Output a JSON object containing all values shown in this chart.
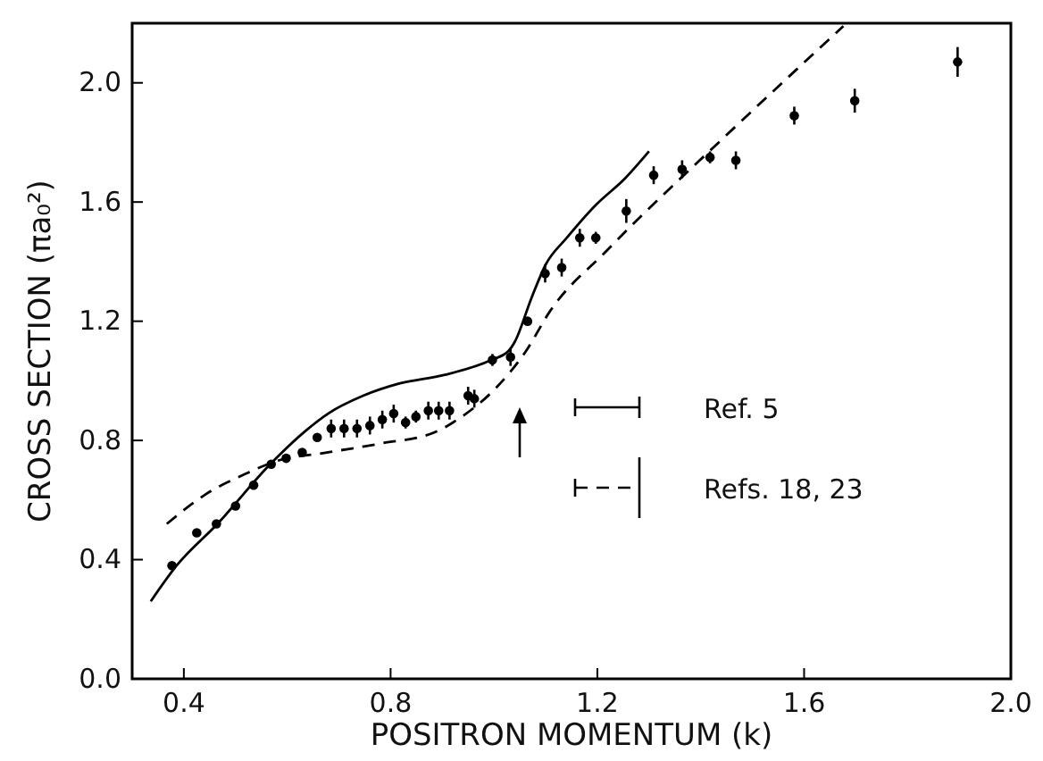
{
  "chart_data": {
    "type": "scatter",
    "xlabel": "POSITRON  MOMENTUM  (k)",
    "ylabel": "CROSS  SECTION  (πa₀²)",
    "xlim": [
      0.3,
      2.0
    ],
    "ylim": [
      0,
      2.2
    ],
    "xticks": [
      0.4,
      0.8,
      1.2,
      1.6,
      {
        "value": 2.0,
        "label": "2.0"
      }
    ],
    "yticks": [
      {
        "value": 0,
        "label": "0.0"
      },
      0.4,
      0.8,
      1.2,
      1.6,
      {
        "value": 2.0,
        "label": "2.0"
      }
    ],
    "grid": false,
    "legend": "right",
    "series": [
      {
        "color": "#000000",
        "marker": "circle",
        "x": [
          0.377,
          0.425,
          0.463,
          0.5,
          0.535,
          0.569,
          0.598,
          0.629,
          0.658,
          0.685,
          0.71,
          0.735,
          0.76,
          0.784,
          0.806,
          0.829,
          0.849,
          0.873,
          0.893,
          0.914,
          0.95,
          0.962,
          0.997,
          1.032,
          1.065,
          1.099,
          1.131,
          1.166,
          1.197,
          1.256,
          1.309,
          1.364,
          1.418,
          1.468,
          1.581,
          1.698,
          1.897
        ],
        "values": [
          0.38,
          0.49,
          0.52,
          0.58,
          0.65,
          0.72,
          0.74,
          0.76,
          0.81,
          0.84,
          0.84,
          0.84,
          0.85,
          0.87,
          0.89,
          0.86,
          0.88,
          0.9,
          0.9,
          0.9,
          0.95,
          0.94,
          1.07,
          1.08,
          1.2,
          1.36,
          1.38,
          1.48,
          1.48,
          1.57,
          1.69,
          1.71,
          1.75,
          1.74,
          1.89,
          1.94,
          2.07
        ],
        "errors": [
          null,
          null,
          null,
          null,
          null,
          null,
          null,
          null,
          null,
          0.03,
          0.03,
          0.03,
          0.03,
          0.03,
          0.03,
          0.02,
          0.02,
          0.03,
          0.03,
          0.03,
          0.03,
          0.03,
          0.02,
          0.03,
          null,
          0.03,
          0.03,
          0.03,
          0.02,
          0.04,
          0.03,
          0.03,
          0.02,
          0.03,
          0.03,
          0.04,
          0.05
        ]
      },
      {
        "type": "line",
        "name": "Ref.  5",
        "color": "#000000",
        "line_style": "solid",
        "x": [
          0.336,
          0.386,
          0.465,
          0.567,
          0.634,
          0.679,
          0.747,
          0.815,
          0.905,
          0.995,
          1.028,
          1.04,
          1.073,
          1.1,
          1.141,
          1.197,
          1.254,
          1.3
        ],
        "values": [
          0.26,
          0.38,
          0.52,
          0.72,
          0.83,
          0.89,
          0.95,
          0.99,
          1.02,
          1.07,
          1.1,
          1.13,
          1.28,
          1.39,
          1.48,
          1.59,
          1.68,
          1.77
        ]
      },
      {
        "type": "line",
        "name": "Refs.  18, 23",
        "color": "#000000",
        "line_style": "dashed",
        "x": [
          0.367,
          0.443,
          0.522,
          0.578,
          0.679,
          0.782,
          0.882,
          0.938,
          1.006,
          1.062,
          1.107,
          1.22,
          1.447,
          1.676
        ],
        "values": [
          0.52,
          0.62,
          0.69,
          0.73,
          0.76,
          0.79,
          0.825,
          0.88,
          0.98,
          1.1,
          1.23,
          1.44,
          1.82,
          2.19
        ]
      }
    ]
  }
}
